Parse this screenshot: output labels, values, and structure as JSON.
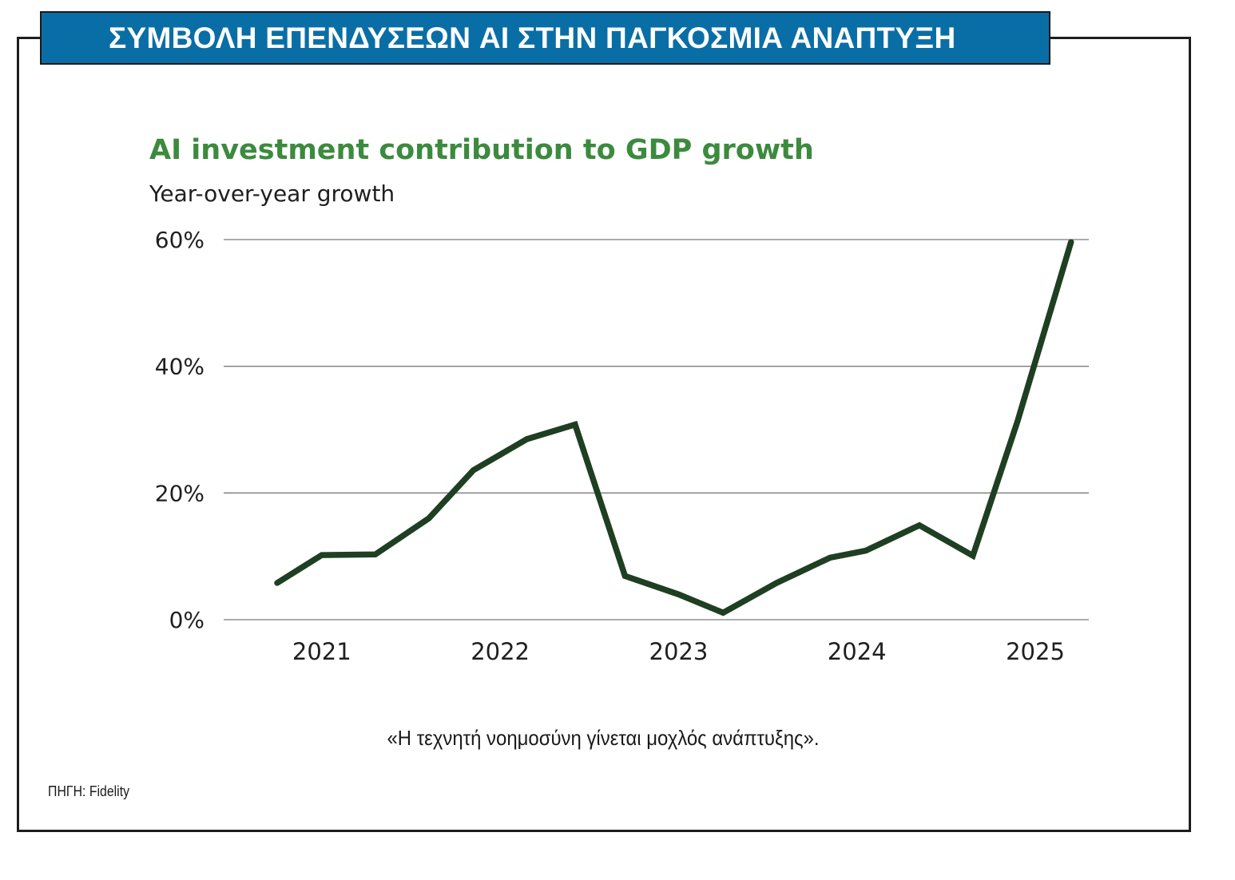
{
  "banner": {
    "title": "ΣΥΜΒΟΛΗ ΕΠΕΝΔΥΣΕΩΝ AI ΣΤΗΝ ΠΑΓΚΟΣΜΙΑ ΑΝΑΠΤΥΞΗ",
    "color": "#0a6ea6"
  },
  "chart_data": {
    "type": "line",
    "title": "AI investment contribution to GDP growth",
    "subtitle": "Year-over-year growth",
    "ylim": [
      0,
      60
    ],
    "yticks": [
      {
        "value": 0,
        "label": "0%"
      },
      {
        "value": 20,
        "label": "20%"
      },
      {
        "value": 40,
        "label": "40%"
      },
      {
        "value": 60,
        "label": "60%"
      }
    ],
    "xlim": [
      2020.45,
      2025.3
    ],
    "xticks": [
      {
        "value": 2021,
        "label": "2021"
      },
      {
        "value": 2022,
        "label": "2022"
      },
      {
        "value": 2023,
        "label": "2023"
      },
      {
        "value": 2024,
        "label": "2024"
      },
      {
        "value": 2025,
        "label": "2025"
      }
    ],
    "grid": true,
    "line_color": "#1e3f22",
    "title_color": "#3c8a3e",
    "series": [
      {
        "points": [
          {
            "x": 2020.75,
            "y": 5.8
          },
          {
            "x": 2021.0,
            "y": 10.2
          },
          {
            "x": 2021.3,
            "y": 10.3
          },
          {
            "x": 2021.6,
            "y": 16.0
          },
          {
            "x": 2021.85,
            "y": 23.6
          },
          {
            "x": 2022.15,
            "y": 28.5
          },
          {
            "x": 2022.42,
            "y": 30.8
          },
          {
            "x": 2022.7,
            "y": 6.9
          },
          {
            "x": 2023.0,
            "y": 4.0
          },
          {
            "x": 2023.25,
            "y": 1.1
          },
          {
            "x": 2023.55,
            "y": 5.8
          },
          {
            "x": 2023.85,
            "y": 9.8
          },
          {
            "x": 2024.05,
            "y": 10.9
          },
          {
            "x": 2024.35,
            "y": 14.9
          },
          {
            "x": 2024.65,
            "y": 10.1
          },
          {
            "x": 2024.9,
            "y": 31.3
          },
          {
            "x": 2025.2,
            "y": 59.6
          }
        ]
      }
    ]
  },
  "caption": "«Η τεχνητή νοημοσύνη γίνεται μοχλός ανάπτυξης».",
  "source": "ΠΗΓΗ: Fidelity"
}
